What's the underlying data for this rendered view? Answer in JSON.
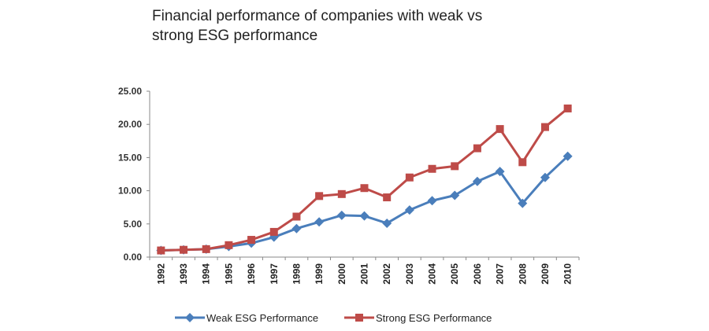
{
  "chart_data": {
    "type": "line",
    "title_lines": [
      "Financial performance of companies with weak vs",
      "strong ESG performance"
    ],
    "xlabel": "",
    "ylabel": "",
    "x": [
      "1992",
      "1993",
      "1994",
      "1995",
      "1996",
      "1997",
      "1998",
      "1999",
      "2000",
      "2001",
      "2002",
      "2003",
      "2004",
      "2005",
      "2006",
      "2007",
      "2008",
      "2009",
      "2010"
    ],
    "ylim": [
      0,
      25
    ],
    "yticks": [
      "0.00",
      "5.00",
      "10.00",
      "15.00",
      "20.00",
      "25.00"
    ],
    "grid": false,
    "legend_position": "bottom",
    "series": [
      {
        "name": "Weak ESG Performance",
        "color": "#4a7ebb",
        "marker": "diamond",
        "values": [
          1.0,
          1.1,
          1.2,
          1.6,
          2.1,
          3.0,
          4.3,
          5.3,
          6.3,
          6.2,
          5.1,
          7.1,
          8.5,
          9.3,
          11.4,
          12.9,
          8.1,
          12.0,
          15.2
        ]
      },
      {
        "name": "Strong ESG Performance",
        "color": "#be4b48",
        "marker": "square",
        "values": [
          1.0,
          1.1,
          1.2,
          1.8,
          2.6,
          3.8,
          6.1,
          9.2,
          9.5,
          10.4,
          9.0,
          12.0,
          13.3,
          13.7,
          16.4,
          19.3,
          14.3,
          19.6,
          22.4
        ]
      }
    ]
  }
}
